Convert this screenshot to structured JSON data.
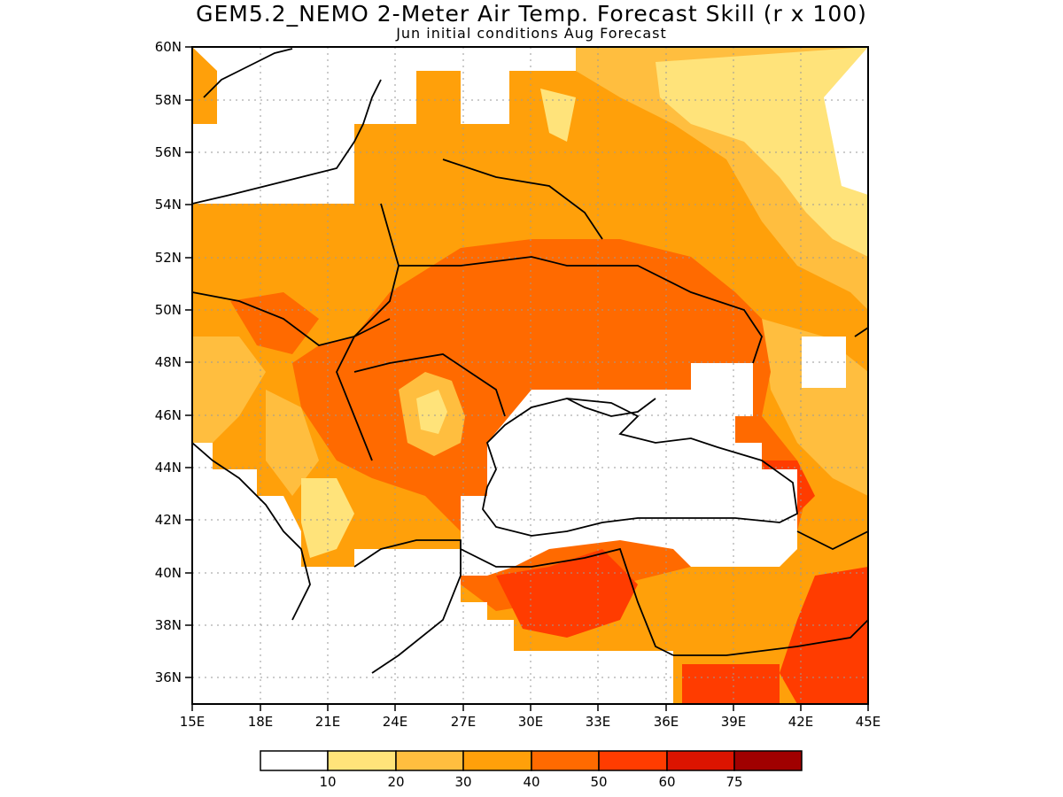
{
  "title": "GEM5.2_NEMO 2-Meter Air Temp. Forecast Skill (r x 100)",
  "subtitle": "Jun initial conditions  Aug Forecast",
  "map": {
    "lon_range": [
      15,
      45
    ],
    "lat_range": [
      35,
      60
    ],
    "x_ticks": [
      "15E",
      "18E",
      "21E",
      "24E",
      "27E",
      "30E",
      "33E",
      "36E",
      "39E",
      "42E",
      "45E"
    ],
    "y_ticks": [
      "36N",
      "38N",
      "40N",
      "42N",
      "44N",
      "46N",
      "48N",
      "50N",
      "52N",
      "54N",
      "56N",
      "58N",
      "60N"
    ],
    "gridlines": "dotted"
  },
  "colorbar": {
    "labels": [
      "10",
      "20",
      "30",
      "40",
      "50",
      "60",
      "75"
    ],
    "colors": [
      "#ffffff",
      "#ffe37a",
      "#ffbe3f",
      "#ffa00a",
      "#ff6a00",
      "#ff3c00",
      "#dc1400",
      "#a00000"
    ]
  },
  "chart_data": {
    "type": "heatmap",
    "title": "GEM5.2_NEMO 2-Meter Air Temp. Forecast Skill (r x 100)",
    "subtitle": "Jun initial conditions  Aug Forecast",
    "x_range": [
      15,
      45
    ],
    "y_range": [
      35,
      60
    ],
    "levels": [
      10,
      20,
      30,
      40,
      50,
      60,
      75
    ]
  }
}
